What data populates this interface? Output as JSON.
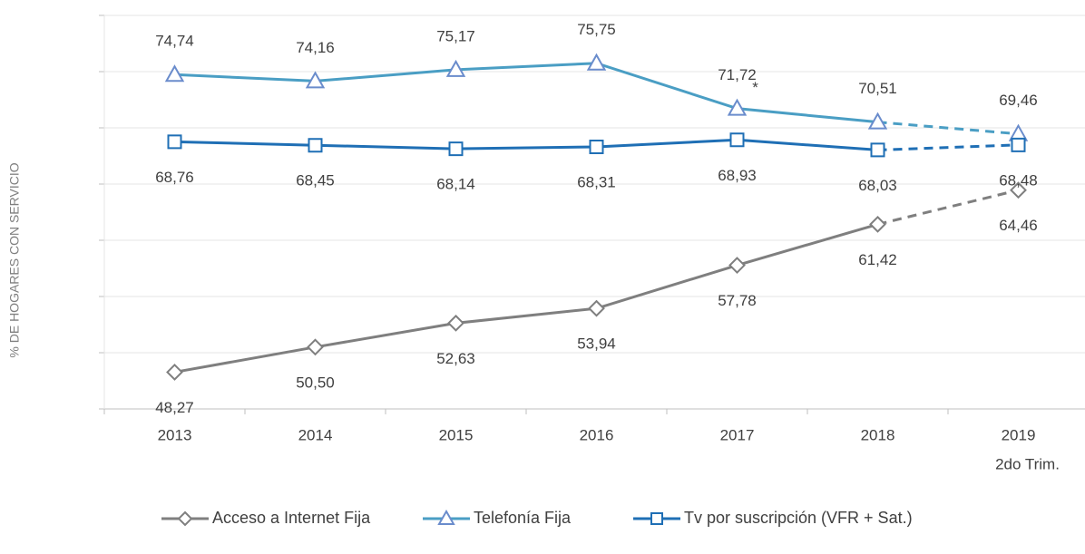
{
  "chart_data": {
    "type": "line",
    "y_label": "% DE HOGARES CON SERVICIO",
    "categories": [
      "2013",
      "2014",
      "2015",
      "2016",
      "2017",
      "2018",
      "2019"
    ],
    "x_note": "2do Trim.",
    "note_mark": "*",
    "ylim": [
      45,
      80
    ],
    "yticks": [
      45,
      50,
      55,
      60,
      65,
      70,
      75,
      80
    ],
    "grid": true,
    "dashed_last_segment": true,
    "legend": "bottom",
    "series": [
      {
        "name": "Acceso a Internet Fija",
        "color": "#7f7f7f",
        "marker": "diamond",
        "label_side": "below",
        "values": [
          48.27,
          50.5,
          52.63,
          53.94,
          57.78,
          61.42,
          64.46
        ],
        "value_labels": [
          "48,27",
          "50,50",
          "52,63",
          "53,94",
          "57,78",
          "61,42",
          "64,46"
        ]
      },
      {
        "name": "Telefonía Fija",
        "color": "#4a9ec4",
        "marker_color": "#6a8ccc",
        "marker": "triangle",
        "label_side": "above",
        "values": [
          74.74,
          74.16,
          75.17,
          75.75,
          71.72,
          70.51,
          69.46
        ],
        "value_labels": [
          "74,74",
          "74,16",
          "75,17",
          "75,75",
          "71,72",
          "70,51",
          "69,46"
        ]
      },
      {
        "name": "Tv por suscripción (VFR + Sat.)",
        "color": "#1f6fb5",
        "marker": "square",
        "label_side": "below",
        "values": [
          68.76,
          68.45,
          68.14,
          68.31,
          68.93,
          68.03,
          68.48
        ],
        "value_labels": [
          "68,76",
          "68,45",
          "68,14",
          "68,31",
          "68,93",
          "68,03",
          "68,48"
        ]
      }
    ]
  }
}
